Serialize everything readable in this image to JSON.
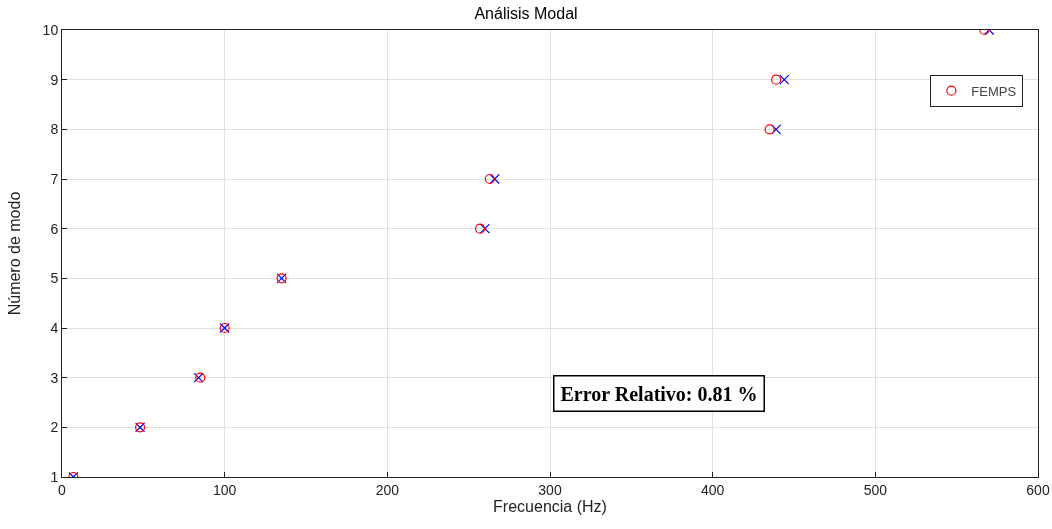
{
  "chart_data": {
    "type": "scatter",
    "title": "Análisis Modal",
    "xlabel": "Frecuencia (Hz)",
    "ylabel": "Número de modo",
    "xlim": [
      0,
      600
    ],
    "xticks": [
      0,
      100,
      200,
      300,
      400,
      500,
      600
    ],
    "ylim": [
      1,
      10
    ],
    "yticks": [
      1,
      2,
      3,
      4,
      5,
      6,
      7,
      8,
      9,
      10
    ],
    "grid": true,
    "legend": "top right",
    "series": [
      {
        "color": "#0000ff",
        "marker": "cross",
        "x": [
          7,
          48,
          84,
          100,
          135,
          260,
          266,
          439,
          444,
          570
        ],
        "values": [
          1,
          2,
          3,
          4,
          5,
          6,
          7,
          8,
          9,
          10
        ]
      },
      {
        "name": "FEMPS",
        "color": "#ff0000",
        "marker": "circle",
        "x": [
          7,
          48,
          85,
          100,
          135,
          257,
          263,
          435,
          439,
          567
        ],
        "values": [
          1,
          2,
          3,
          4,
          5,
          6,
          7,
          8,
          9,
          10
        ]
      }
    ],
    "annotations": [
      "Error Relativo: 0.81 %"
    ]
  }
}
